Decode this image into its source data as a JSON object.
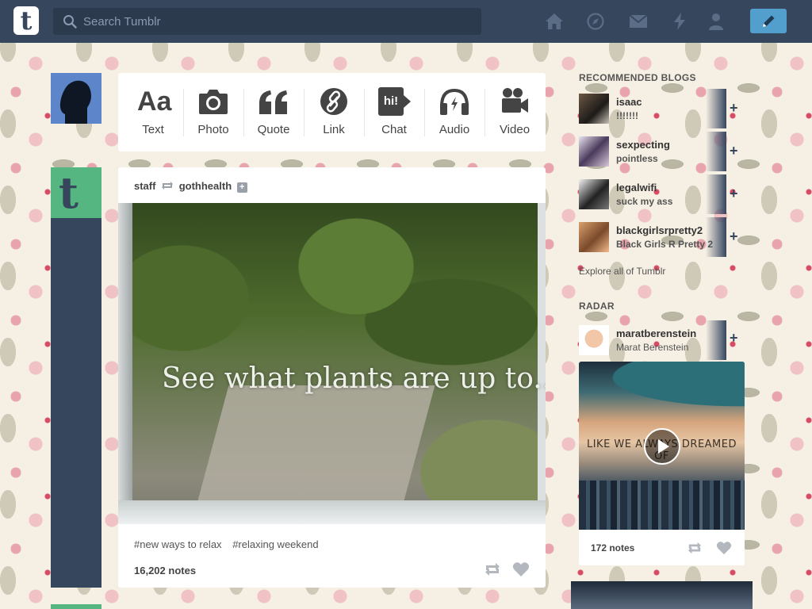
{
  "header": {
    "logo": "t",
    "search_placeholder": "Search Tumblr",
    "nav": [
      "home-icon",
      "explore-icon",
      "inbox-icon",
      "activity-icon",
      "account-icon"
    ],
    "compose": "pencil-icon"
  },
  "post_bar": {
    "items": [
      {
        "label": "Text",
        "icon": "text-icon"
      },
      {
        "label": "Photo",
        "icon": "camera-icon"
      },
      {
        "label": "Quote",
        "icon": "quote-icon"
      },
      {
        "label": "Link",
        "icon": "link-icon"
      },
      {
        "label": "Chat",
        "icon": "chat-icon"
      },
      {
        "label": "Audio",
        "icon": "headphones-icon"
      },
      {
        "label": "Video",
        "icon": "video-camera-icon"
      }
    ],
    "text_glyph": "Aa",
    "chat_glyph": "hi!"
  },
  "post": {
    "author": "staff",
    "reblogged_from": "gothhealth",
    "follow_glyph": "+",
    "photo_caption": "See what plants are up to...",
    "tags": [
      "#new ways to relax",
      "#relaxing weekend"
    ],
    "notes": "16,202 notes"
  },
  "sidebar": {
    "recommended_title": "RECOMMENDED BLOGS",
    "blogs": [
      {
        "name": "isaac",
        "title": "!!!!!!!"
      },
      {
        "name": "sexpecting",
        "title": "pointless"
      },
      {
        "name": "legalwifi",
        "title": "suck my ass"
      },
      {
        "name": "blackgirlsrpretty2",
        "title": "Black Girls R Pretty 2"
      }
    ],
    "plus": "+",
    "explore": "Explore all of Tumblr",
    "radar_title": "RADAR",
    "radar": {
      "name": "maratberenstein",
      "title": "Marat Berenstein",
      "image_text": "LIKE WE ALWAYS DREAMED OF",
      "notes": "172 notes"
    }
  },
  "colors": {
    "navy": "#36465d",
    "accent_blue": "#529ecc",
    "staff_green": "#56b682",
    "avatar_blue": "#5c86c9"
  }
}
